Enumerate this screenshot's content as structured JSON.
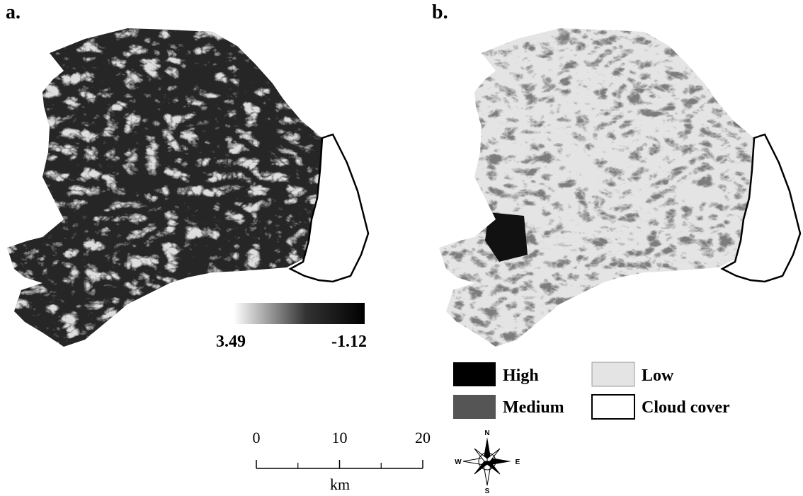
{
  "panels": [
    {
      "label": "a."
    },
    {
      "label": "b."
    }
  ],
  "colorbar": {
    "labels": [
      3.49,
      -1.12
    ]
  },
  "legend": {
    "items": [
      "High",
      "Medium",
      "Low",
      "Cloud cover"
    ]
  },
  "scale_bar": {
    "ticks": [
      0,
      10,
      20
    ],
    "unit": "km"
  },
  "compass": {
    "north": "N",
    "east": "E",
    "south": "S",
    "west": "W"
  }
}
